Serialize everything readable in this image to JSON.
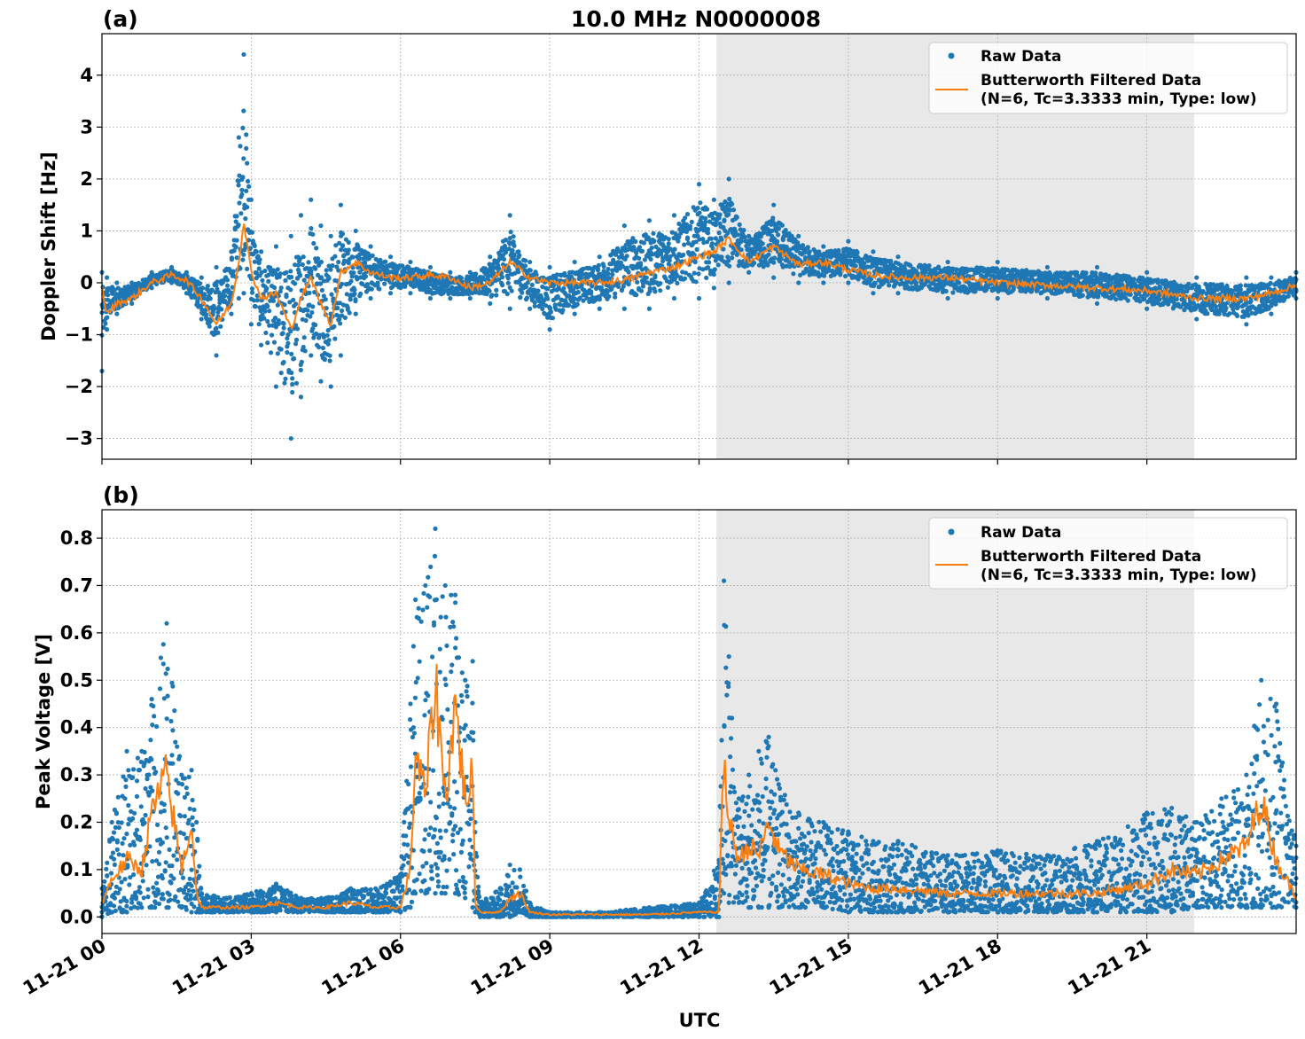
{
  "figure": {
    "title": "10.0 MHz N0000008",
    "xlabel": "UTC",
    "x_ticks": [
      "11-21 00",
      "11-21 03",
      "11-21 06",
      "11-21 09",
      "11-21 12",
      "11-21 15",
      "11-21 18",
      "11-21 21"
    ]
  },
  "legend": {
    "raw": "Raw Data",
    "filtered_line1": "Butterworth Filtered Data",
    "filtered_line2": "(N=6, Tc=3.3333 min, Type: low)"
  },
  "colors": {
    "raw": "#1f77b4",
    "filtered": "#ff7f0e",
    "shade": "#e8e8e8",
    "grid": "#b0b0b0"
  },
  "chart_data": [
    {
      "type": "scatter",
      "panel_label": "(a)",
      "title": "10.0 MHz N0000008",
      "xlabel": "",
      "ylabel": "Doppler Shift [Hz]",
      "x_unit": "hours UTC on 11-21",
      "xlim": [
        0,
        24
      ],
      "ylim": [
        -3.4,
        4.8
      ],
      "yticks": [
        -3,
        -2,
        -1,
        0,
        1,
        2,
        3,
        4
      ],
      "ytick_labels": [
        "−3",
        "−2",
        "−1",
        "0",
        "1",
        "2",
        "3",
        "4"
      ],
      "shaded_interval": [
        12.35,
        21.95
      ],
      "grid": true,
      "legend_position": "upper-right",
      "series": [
        {
          "name": "Raw Data",
          "style": "points",
          "x": [
            0,
            0.1,
            0.3,
            0.6,
            1.0,
            1.4,
            1.7,
            2.0,
            2.3,
            2.6,
            2.75,
            2.85,
            3.0,
            3.2,
            3.5,
            3.8,
            4.0,
            4.2,
            4.4,
            4.6,
            4.8,
            5.1,
            5.4,
            5.8,
            6.2,
            6.6,
            7.0,
            7.4,
            7.8,
            8.2,
            8.6,
            9.0,
            9.5,
            10.0,
            10.5,
            11.0,
            11.5,
            12.0,
            12.3,
            12.6,
            13.0,
            13.5,
            14.0,
            14.5,
            15.0,
            15.5,
            16.0,
            17.0,
            18.0,
            19.0,
            20.0,
            21.0,
            22.0,
            23.0,
            23.5,
            24.0
          ],
          "y_low": [
            -1.7,
            -0.9,
            -0.6,
            -0.4,
            -0.1,
            0.0,
            -0.2,
            -0.7,
            -1.4,
            -0.6,
            -0.3,
            -0.2,
            -0.8,
            -1.2,
            -2.0,
            -3.0,
            -2.2,
            -1.4,
            -1.9,
            -2.0,
            -1.4,
            -0.6,
            -0.3,
            -0.2,
            -0.2,
            -0.3,
            -0.3,
            -0.3,
            -0.4,
            -0.5,
            -0.5,
            -0.9,
            -0.6,
            -0.5,
            -0.5,
            -0.5,
            -0.3,
            -0.3,
            -0.1,
            0.0,
            0.2,
            0.1,
            0.0,
            0.0,
            0.0,
            -0.2,
            -0.2,
            -0.3,
            -0.3,
            -0.3,
            -0.4,
            -0.5,
            -0.7,
            -0.8,
            -0.6,
            -0.3
          ],
          "y_high": [
            0.2,
            0.1,
            0.0,
            0.0,
            0.2,
            0.3,
            0.2,
            0.1,
            0.3,
            0.6,
            2.8,
            4.4,
            1.6,
            0.6,
            0.7,
            0.9,
            1.3,
            1.6,
            1.1,
            0.9,
            1.5,
            1.0,
            0.7,
            0.5,
            0.4,
            0.3,
            0.2,
            0.2,
            0.5,
            1.3,
            0.4,
            0.3,
            0.4,
            0.5,
            1.1,
            1.2,
            1.3,
            1.9,
            1.6,
            2.0,
            0.9,
            1.5,
            0.9,
            0.7,
            0.8,
            0.6,
            0.5,
            0.4,
            0.4,
            0.3,
            0.3,
            0.2,
            0.1,
            0.1,
            0.1,
            0.2
          ]
        },
        {
          "name": "Butterworth Filtered Data (N=6, Tc=3.3333 min, Type: low)",
          "style": "line",
          "x": [
            0,
            0.1,
            0.3,
            0.6,
            1.0,
            1.4,
            1.7,
            2.0,
            2.3,
            2.6,
            2.75,
            2.85,
            3.0,
            3.2,
            3.5,
            3.8,
            4.0,
            4.2,
            4.4,
            4.6,
            4.8,
            5.1,
            5.4,
            5.8,
            6.2,
            6.6,
            7.0,
            7.4,
            7.8,
            8.2,
            8.6,
            9.0,
            9.5,
            10.0,
            10.5,
            11.0,
            11.5,
            12.0,
            12.3,
            12.6,
            13.0,
            13.5,
            14.0,
            14.5,
            15.0,
            15.5,
            16.0,
            17.0,
            18.0,
            19.0,
            20.0,
            21.0,
            22.0,
            23.0,
            23.5,
            24.0
          ],
          "y": [
            -0.1,
            -0.6,
            -0.4,
            -0.3,
            0.0,
            0.15,
            0.05,
            -0.3,
            -0.8,
            -0.4,
            0.4,
            1.2,
            0.2,
            -0.3,
            -0.2,
            -0.9,
            -0.3,
            0.1,
            -0.4,
            -0.8,
            0.2,
            0.4,
            0.2,
            0.1,
            0.1,
            0.15,
            0.1,
            -0.1,
            0.0,
            0.4,
            0.1,
            0.0,
            0.0,
            0.0,
            0.05,
            0.2,
            0.3,
            0.5,
            0.6,
            0.85,
            0.4,
            0.7,
            0.35,
            0.4,
            0.25,
            0.15,
            0.1,
            0.1,
            0.0,
            -0.05,
            -0.1,
            -0.15,
            -0.3,
            -0.3,
            -0.2,
            -0.05
          ]
        }
      ]
    },
    {
      "type": "scatter",
      "panel_label": "(b)",
      "title": "",
      "xlabel": "UTC",
      "ylabel": "Peak Voltage [V]",
      "x_unit": "hours UTC on 11-21",
      "xlim": [
        0,
        24
      ],
      "ylim": [
        -0.035,
        0.86
      ],
      "yticks": [
        0.0,
        0.1,
        0.2,
        0.3,
        0.4,
        0.5,
        0.6,
        0.7,
        0.8
      ],
      "ytick_labels": [
        "0.0",
        "0.1",
        "0.2",
        "0.3",
        "0.4",
        "0.5",
        "0.6",
        "0.7",
        "0.8"
      ],
      "shaded_interval": [
        12.35,
        21.95
      ],
      "grid": true,
      "legend_position": "upper-right",
      "series": [
        {
          "name": "Raw Data",
          "style": "points",
          "x": [
            0,
            0.2,
            0.5,
            0.8,
            1.0,
            1.3,
            1.6,
            1.8,
            1.9,
            2.0,
            2.5,
            3.0,
            3.5,
            4.0,
            4.5,
            5.0,
            5.5,
            6.0,
            6.2,
            6.3,
            6.5,
            6.7,
            6.9,
            7.1,
            7.3,
            7.45,
            7.5,
            7.6,
            8.0,
            8.2,
            8.4,
            8.6,
            9.0,
            10.0,
            11.0,
            12.0,
            12.4,
            12.5,
            12.6,
            12.8,
            13.0,
            13.2,
            13.4,
            13.6,
            14.0,
            14.5,
            15.0,
            15.5,
            16.0,
            17.0,
            18.0,
            19.0,
            20.0,
            21.0,
            21.5,
            22.0,
            22.5,
            23.0,
            23.3,
            23.6,
            24.0
          ],
          "y_low": [
            0.0,
            0.01,
            0.01,
            0.02,
            0.02,
            0.02,
            0.02,
            0.01,
            0.01,
            0.01,
            0.01,
            0.01,
            0.01,
            0.01,
            0.01,
            0.01,
            0.01,
            0.01,
            0.02,
            0.05,
            0.05,
            0.05,
            0.05,
            0.05,
            0.04,
            0.02,
            0.01,
            0.0,
            0.0,
            0.0,
            0.01,
            0.0,
            0.0,
            0.0,
            0.0,
            0.0,
            0.0,
            0.05,
            0.03,
            0.03,
            0.02,
            0.02,
            0.02,
            0.02,
            0.02,
            0.02,
            0.01,
            0.01,
            0.01,
            0.01,
            0.01,
            0.01,
            0.01,
            0.01,
            0.01,
            0.02,
            0.02,
            0.02,
            0.02,
            0.02,
            0.02
          ],
          "y_high": [
            0.06,
            0.2,
            0.35,
            0.35,
            0.46,
            0.62,
            0.3,
            0.31,
            0.2,
            0.05,
            0.04,
            0.05,
            0.07,
            0.04,
            0.04,
            0.06,
            0.06,
            0.09,
            0.45,
            0.67,
            0.7,
            0.82,
            0.7,
            0.68,
            0.5,
            0.54,
            0.2,
            0.03,
            0.06,
            0.11,
            0.1,
            0.03,
            0.01,
            0.01,
            0.02,
            0.03,
            0.12,
            0.71,
            0.55,
            0.25,
            0.3,
            0.35,
            0.38,
            0.28,
            0.22,
            0.2,
            0.18,
            0.16,
            0.16,
            0.13,
            0.14,
            0.13,
            0.16,
            0.22,
            0.23,
            0.2,
            0.25,
            0.3,
            0.5,
            0.45,
            0.15
          ]
        },
        {
          "name": "Butterworth Filtered Data (N=6, Tc=3.3333 min, Type: low)",
          "style": "line",
          "x": [
            0,
            0.2,
            0.5,
            0.8,
            1.0,
            1.3,
            1.6,
            1.8,
            1.9,
            2.0,
            2.5,
            3.0,
            3.5,
            4.0,
            4.5,
            5.0,
            5.5,
            6.0,
            6.2,
            6.3,
            6.5,
            6.7,
            6.9,
            7.1,
            7.3,
            7.45,
            7.5,
            7.6,
            8.0,
            8.2,
            8.4,
            8.6,
            9.0,
            10.0,
            11.0,
            12.0,
            12.4,
            12.5,
            12.6,
            12.8,
            13.0,
            13.2,
            13.4,
            13.6,
            14.0,
            14.5,
            15.0,
            15.5,
            16.0,
            17.0,
            18.0,
            19.0,
            20.0,
            21.0,
            21.5,
            22.0,
            22.5,
            23.0,
            23.3,
            23.6,
            24.0
          ],
          "y": [
            0.03,
            0.08,
            0.12,
            0.1,
            0.22,
            0.3,
            0.1,
            0.2,
            0.05,
            0.02,
            0.02,
            0.02,
            0.03,
            0.02,
            0.02,
            0.03,
            0.02,
            0.02,
            0.1,
            0.35,
            0.25,
            0.5,
            0.25,
            0.45,
            0.25,
            0.3,
            0.03,
            0.01,
            0.01,
            0.04,
            0.05,
            0.01,
            0.005,
            0.005,
            0.005,
            0.01,
            0.01,
            0.34,
            0.2,
            0.12,
            0.15,
            0.13,
            0.2,
            0.14,
            0.1,
            0.09,
            0.07,
            0.06,
            0.06,
            0.05,
            0.05,
            0.05,
            0.05,
            0.07,
            0.1,
            0.09,
            0.12,
            0.15,
            0.25,
            0.12,
            0.04
          ]
        }
      ]
    }
  ]
}
